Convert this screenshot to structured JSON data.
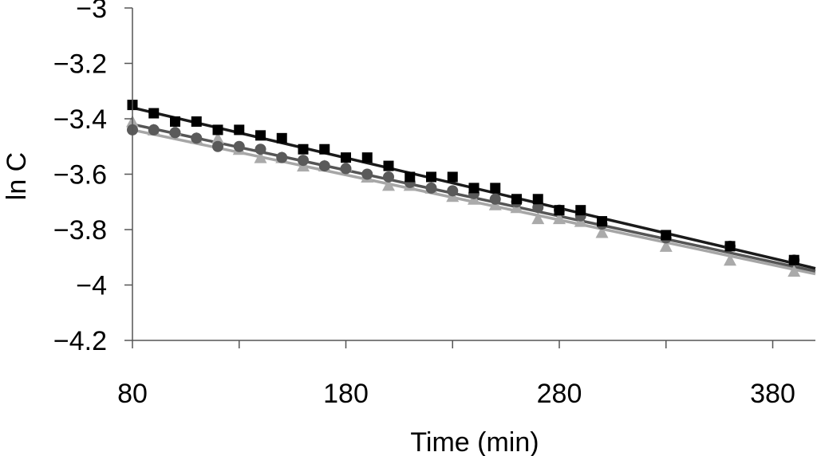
{
  "chart_data": {
    "type": "scatter",
    "title": "",
    "xlabel": "Time (min)",
    "ylabel": "ln C",
    "xlim": [
      80,
      400
    ],
    "ylim": [
      -4.2,
      -3
    ],
    "xticks": [
      "80",
      "180",
      "280",
      "380"
    ],
    "yticks": [
      "-3",
      "-3.2",
      "-3.4",
      "-3.6",
      "-3.8",
      "-4",
      "-4.2"
    ],
    "grid": false,
    "legend": "none",
    "series": [
      {
        "marker": "square",
        "color": "#000000",
        "line_color": "#1a1a1a",
        "x": [
          80,
          90,
          100,
          110,
          120,
          130,
          140,
          150,
          160,
          170,
          180,
          190,
          200,
          210,
          220,
          230,
          240,
          250,
          260,
          270,
          280,
          290,
          300,
          330,
          360,
          390
        ],
        "y": [
          -3.35,
          -3.38,
          -3.41,
          -3.41,
          -3.44,
          -3.44,
          -3.46,
          -3.47,
          -3.51,
          -3.51,
          -3.54,
          -3.54,
          -3.57,
          -3.61,
          -3.61,
          -3.61,
          -3.65,
          -3.65,
          -3.69,
          -3.69,
          -3.73,
          -3.73,
          -3.77,
          -3.82,
          -3.86,
          -3.91
        ],
        "fit": [
          [
            80,
            -3.36
          ],
          [
            400,
            -3.94
          ]
        ]
      },
      {
        "marker": "circle",
        "color": "#5a5a5a",
        "line_color": "#555555",
        "x": [
          80,
          90,
          100,
          110,
          120,
          130,
          140,
          150,
          160,
          170,
          180,
          190,
          200,
          210,
          220,
          230,
          240,
          250,
          260,
          270,
          280,
          290,
          300,
          330,
          360,
          390
        ],
        "y": [
          -3.44,
          -3.44,
          -3.45,
          -3.47,
          -3.5,
          -3.5,
          -3.51,
          -3.54,
          -3.55,
          -3.57,
          -3.58,
          -3.6,
          -3.61,
          -3.63,
          -3.65,
          -3.66,
          -3.67,
          -3.69,
          -3.7,
          -3.72,
          -3.73,
          -3.75,
          -3.78,
          -3.83,
          -3.86,
          -3.91
        ],
        "fit": [
          [
            80,
            -3.42
          ],
          [
            400,
            -3.95
          ]
        ]
      },
      {
        "marker": "triangle",
        "color": "#aaaaaa",
        "line_color": "#a6a6a6",
        "x": [
          80,
          90,
          100,
          110,
          120,
          130,
          140,
          150,
          160,
          170,
          180,
          190,
          200,
          210,
          220,
          230,
          240,
          250,
          260,
          270,
          280,
          290,
          300,
          330,
          360,
          390
        ],
        "y": [
          -3.41,
          -3.44,
          -3.44,
          -3.47,
          -3.47,
          -3.51,
          -3.54,
          -3.54,
          -3.57,
          -3.57,
          -3.57,
          -3.61,
          -3.64,
          -3.64,
          -3.65,
          -3.68,
          -3.69,
          -3.71,
          -3.72,
          -3.76,
          -3.76,
          -3.77,
          -3.81,
          -3.86,
          -3.91,
          -3.95
        ],
        "fit": [
          [
            80,
            -3.44
          ],
          [
            400,
            -3.96
          ]
        ]
      }
    ]
  }
}
